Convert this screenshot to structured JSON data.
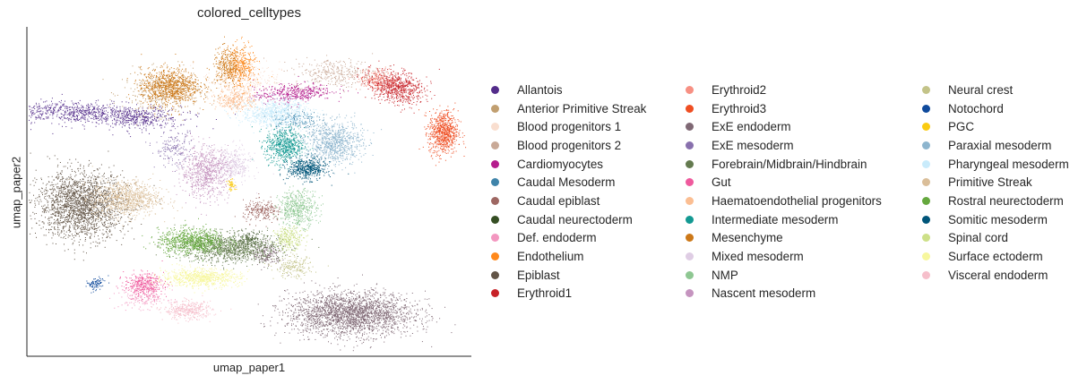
{
  "chart_data": {
    "type": "scatter",
    "title": "colored_celltypes",
    "xlabel": "umap_paper1",
    "ylabel": "umap_paper2",
    "grid": false,
    "legend_placement": "right",
    "series": [
      {
        "name": "Allantois",
        "color": "#532C8A",
        "regions": [
          [
            0.12,
            0.74,
            0.2,
            0.03,
            -0.05,
            1400
          ],
          [
            0.25,
            0.72,
            0.08,
            0.03,
            0,
            400
          ]
        ]
      },
      {
        "name": "Anterior Primitive Streak",
        "color": "#C19F70",
        "regions": [
          [
            0.3,
            0.8,
            0.08,
            0.06,
            0,
            600
          ]
        ]
      },
      {
        "name": "Blood progenitors 1",
        "color": "#F9DECF",
        "regions": [
          [
            0.48,
            0.84,
            0.08,
            0.05,
            0,
            500
          ]
        ]
      },
      {
        "name": "Blood progenitors 2",
        "color": "#C9A997",
        "regions": [
          [
            0.7,
            0.86,
            0.09,
            0.04,
            0,
            600
          ]
        ]
      },
      {
        "name": "Cardiomyocytes",
        "color": "#B51D8D",
        "regions": [
          [
            0.6,
            0.8,
            0.08,
            0.025,
            0.1,
            700
          ]
        ]
      },
      {
        "name": "Caudal Mesoderm",
        "color": "#3F84AA",
        "regions": [
          [
            0.6,
            0.72,
            0.05,
            0.03,
            0,
            300
          ]
        ]
      },
      {
        "name": "Caudal epiblast",
        "color": "#9E6762",
        "regions": [
          [
            0.53,
            0.44,
            0.04,
            0.03,
            0,
            400
          ]
        ]
      },
      {
        "name": "Caudal neurectoderm",
        "color": "#354E23",
        "regions": [
          [
            0.5,
            0.36,
            0.03,
            0.02,
            0,
            150
          ]
        ]
      },
      {
        "name": "Def. endoderm",
        "color": "#F397C0",
        "regions": [
          [
            0.26,
            0.18,
            0.05,
            0.03,
            0,
            300
          ]
        ]
      },
      {
        "name": "Endothelium",
        "color": "#FF891C",
        "regions": [
          [
            0.48,
            0.88,
            0.03,
            0.06,
            0,
            600
          ]
        ]
      },
      {
        "name": "Epiblast",
        "color": "#635547",
        "regions": [
          [
            0.12,
            0.46,
            0.09,
            0.09,
            0,
            3500
          ]
        ]
      },
      {
        "name": "Erythroid1",
        "color": "#C72228",
        "regions": [
          [
            0.83,
            0.82,
            0.06,
            0.04,
            -0.5,
            1200
          ]
        ]
      },
      {
        "name": "Erythroid2",
        "color": "#F79083",
        "regions": [
          [
            0.79,
            0.84,
            0.04,
            0.03,
            0,
            300
          ]
        ]
      },
      {
        "name": "Erythroid3",
        "color": "#EF4E22",
        "regions": [
          [
            0.94,
            0.68,
            0.03,
            0.06,
            0,
            1200
          ]
        ]
      },
      {
        "name": "ExE endoderm",
        "color": "#7F6874",
        "regions": [
          [
            0.73,
            0.13,
            0.13,
            0.06,
            0,
            4000
          ],
          [
            0.54,
            0.31,
            0.03,
            0.03,
            0,
            300
          ]
        ]
      },
      {
        "name": "ExE mesoderm",
        "color": "#8870AD",
        "regions": [
          [
            0.33,
            0.63,
            0.04,
            0.05,
            0,
            300
          ]
        ]
      },
      {
        "name": "Forebrain/Midbrain/Hindbrain",
        "color": "#647A4F",
        "regions": [
          [
            0.46,
            0.33,
            0.1,
            0.04,
            0,
            1800
          ]
        ]
      },
      {
        "name": "Gut",
        "color": "#EF5A9D",
        "regions": [
          [
            0.26,
            0.22,
            0.04,
            0.03,
            0,
            600
          ]
        ]
      },
      {
        "name": "Haematoendothelial progenitors",
        "color": "#FBBE92",
        "regions": [
          [
            0.47,
            0.78,
            0.04,
            0.03,
            0,
            500
          ]
        ]
      },
      {
        "name": "Intermediate mesoderm",
        "color": "#139992",
        "regions": [
          [
            0.58,
            0.64,
            0.04,
            0.05,
            0,
            1000
          ]
        ]
      },
      {
        "name": "Mesenchyme",
        "color": "#CC7818",
        "regions": [
          [
            0.32,
            0.82,
            0.06,
            0.05,
            0,
            1500
          ],
          [
            0.45,
            0.88,
            0.03,
            0.05,
            0,
            500
          ]
        ]
      },
      {
        "name": "Mixed mesoderm",
        "color": "#DFCDE4",
        "regions": [
          [
            0.46,
            0.58,
            0.04,
            0.05,
            0,
            600
          ]
        ]
      },
      {
        "name": "NMP",
        "color": "#8EC792",
        "regions": [
          [
            0.61,
            0.45,
            0.04,
            0.05,
            0,
            800
          ]
        ]
      },
      {
        "name": "Nascent mesoderm",
        "color": "#C594BF",
        "regions": [
          [
            0.4,
            0.56,
            0.05,
            0.07,
            0,
            1200
          ]
        ]
      },
      {
        "name": "Neural crest",
        "color": "#C3C388",
        "regions": [
          [
            0.6,
            0.27,
            0.04,
            0.03,
            0,
            300
          ]
        ]
      },
      {
        "name": "Notochord",
        "color": "#0F4A9C",
        "regions": [
          [
            0.15,
            0.22,
            0.02,
            0.015,
            0.7,
            150
          ]
        ]
      },
      {
        "name": "PGC",
        "color": "#FACB12",
        "regions": [
          [
            0.46,
            0.52,
            0.01,
            0.015,
            0,
            80
          ]
        ]
      },
      {
        "name": "Paraxial mesoderm",
        "color": "#8DB5CE",
        "regions": [
          [
            0.69,
            0.65,
            0.06,
            0.06,
            0,
            1400
          ]
        ]
      },
      {
        "name": "Pharyngeal mesoderm",
        "color": "#C9EBFB",
        "regions": [
          [
            0.56,
            0.74,
            0.07,
            0.04,
            0,
            1200
          ]
        ]
      },
      {
        "name": "Primitive Streak",
        "color": "#DABE99",
        "regions": [
          [
            0.22,
            0.48,
            0.07,
            0.05,
            0,
            1500
          ]
        ]
      },
      {
        "name": "Rostral neurectoderm",
        "color": "#65A83E",
        "regions": [
          [
            0.37,
            0.35,
            0.07,
            0.035,
            0,
            1400
          ]
        ]
      },
      {
        "name": "Somitic mesoderm",
        "color": "#005579",
        "regions": [
          [
            0.63,
            0.57,
            0.04,
            0.03,
            0,
            800
          ]
        ]
      },
      {
        "name": "Spinal cord",
        "color": "#CDE088",
        "regions": [
          [
            0.59,
            0.36,
            0.03,
            0.03,
            0,
            400
          ]
        ]
      },
      {
        "name": "Surface ectoderm",
        "color": "#F7F79E",
        "regions": [
          [
            0.39,
            0.24,
            0.08,
            0.025,
            0,
            1200
          ]
        ]
      },
      {
        "name": "Visceral endoderm",
        "color": "#F6BFCB",
        "regions": [
          [
            0.36,
            0.14,
            0.05,
            0.025,
            0,
            600
          ]
        ]
      }
    ],
    "legend_columns": [
      [
        "Allantois",
        "Anterior Primitive Streak",
        "Blood progenitors 1",
        "Blood progenitors 2",
        "Cardiomyocytes",
        "Caudal Mesoderm",
        "Caudal epiblast",
        "Caudal neurectoderm",
        "Def. endoderm",
        "Endothelium",
        "Epiblast",
        "Erythroid1"
      ],
      [
        "Erythroid2",
        "Erythroid3",
        "ExE endoderm",
        "ExE mesoderm",
        "Forebrain/Midbrain/Hindbrain",
        "Gut",
        "Haematoendothelial progenitors",
        "Intermediate mesoderm",
        "Mesenchyme",
        "Mixed mesoderm",
        "NMP",
        "Nascent mesoderm"
      ],
      [
        "Neural crest",
        "Notochord",
        "PGC",
        "Paraxial mesoderm",
        "Pharyngeal mesoderm",
        "Primitive Streak",
        "Rostral neurectoderm",
        "Somitic mesoderm",
        "Spinal cord",
        "Surface ectoderm",
        "Visceral endoderm"
      ]
    ]
  }
}
